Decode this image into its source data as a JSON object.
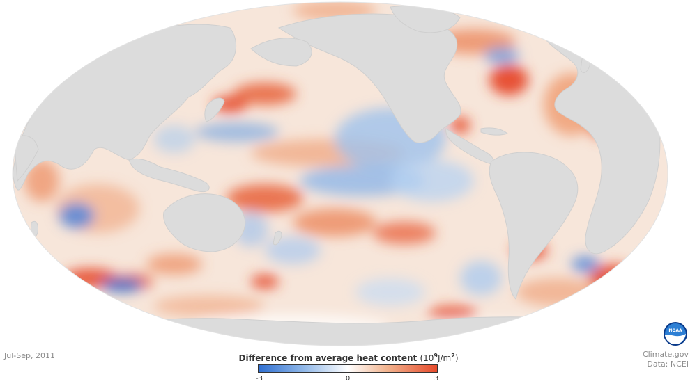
{
  "period": "Jul-Sep, 2011",
  "legend": {
    "title": "Difference from average heat content",
    "unit_prefix": "(10",
    "unit_exponent": "9",
    "unit_middle": "J/m",
    "unit_square": "2",
    "unit_suffix": ")",
    "min_label": "-3",
    "mid_label": "0",
    "max_label": "3",
    "colors": {
      "negative": "#2f6fd1",
      "neutral": "#ffffff",
      "positive": "#e64a2b"
    }
  },
  "credits": {
    "site": "Climate.gov",
    "data": "Data: NCEI",
    "logo_text": "NOAA"
  },
  "colors": {
    "land": "#dcdcdc",
    "ocean_base": "#f7e6da"
  }
}
